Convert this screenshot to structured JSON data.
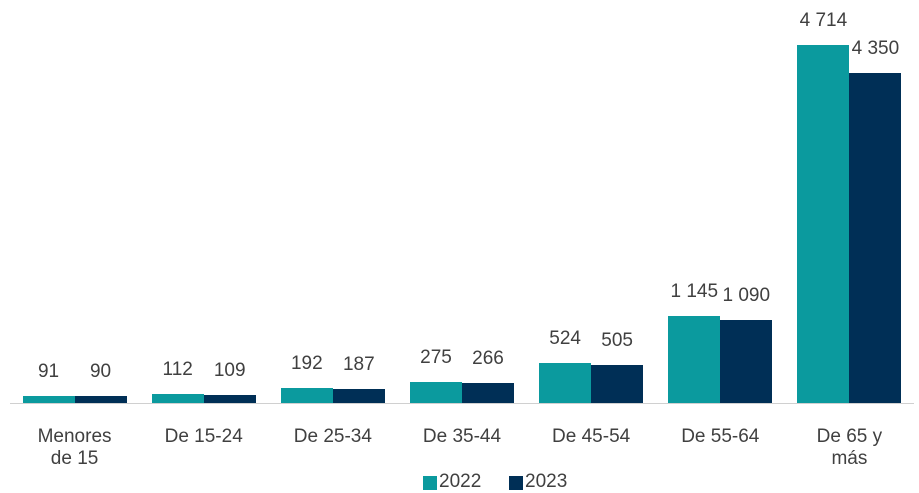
{
  "chart_data": {
    "type": "bar",
    "categories": [
      "Menores de 15",
      "De 15-24",
      "De 25-34",
      "De 35-44",
      "De 45-54",
      "De 55-64",
      "De 65 y más"
    ],
    "series": [
      {
        "name": "2022",
        "color": "#0b9a9e",
        "values": [
          91,
          112,
          192,
          275,
          524,
          1145,
          4714
        ],
        "value_labels": [
          "91",
          "112",
          "192",
          "275",
          "524",
          "1 145",
          "4 714"
        ]
      },
      {
        "name": "2023",
        "color": "#002f56",
        "values": [
          90,
          109,
          187,
          266,
          505,
          1090,
          4350
        ],
        "value_labels": [
          "90",
          "109",
          "187",
          "266",
          "505",
          "1 090",
          "4 350"
        ]
      }
    ],
    "legend": "bottom"
  }
}
